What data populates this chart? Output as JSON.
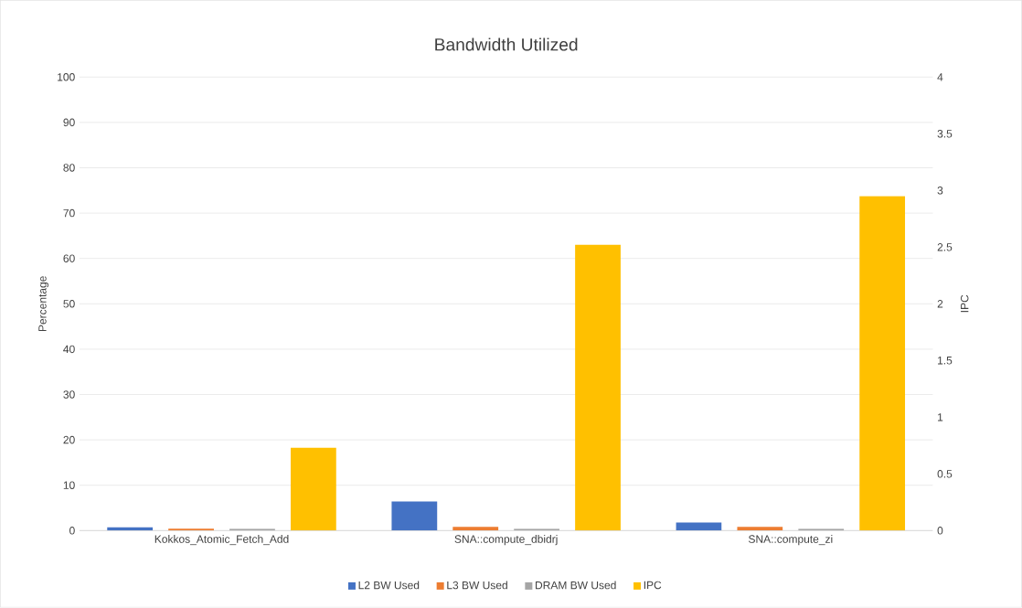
{
  "chart_data": {
    "type": "bar",
    "title": "Bandwidth Utilized",
    "categories": [
      "Kokkos_Atomic_Fetch_Add",
      "SNA::compute_dbidrj",
      "SNA::compute_zi"
    ],
    "series": [
      {
        "name": "L2 BW Used",
        "color": "#4472c4",
        "values": [
          0.7,
          6.4,
          1.8
        ]
      },
      {
        "name": "L3 BW Used",
        "color": "#ed7d31",
        "values": [
          0.4,
          0.8,
          0.8
        ]
      },
      {
        "name": "DRAM BW Used",
        "color": "#a5a5a5",
        "values": [
          0.4,
          0.4,
          0.4
        ]
      },
      {
        "name": "IPC",
        "color": "#ffc000",
        "values": [
          0.73,
          2.52,
          2.95
        ],
        "axis": "y2"
      }
    ],
    "ylabel": "Percentage",
    "y2label": "IPC",
    "ylim": [
      0,
      100
    ],
    "yticks": [
      0,
      10,
      20,
      30,
      40,
      50,
      60,
      70,
      80,
      90,
      100
    ],
    "y2lim": [
      0,
      4
    ],
    "y2ticks": [
      0,
      0.5,
      1,
      1.5,
      2,
      2.5,
      3,
      3.5,
      4
    ],
    "grid": "y",
    "legend": "bottom"
  }
}
